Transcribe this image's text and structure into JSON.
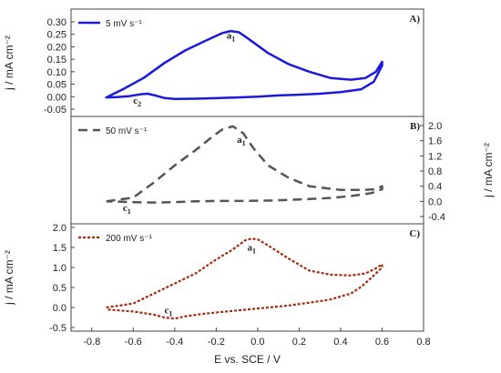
{
  "chart_data": [
    {
      "type": "line",
      "panel": "A)",
      "ylabel": "j / mA cm⁻²",
      "ylim": [
        -0.05,
        0.3
      ],
      "yticks": [
        "0.30",
        "0.25",
        "0.20",
        "0.15",
        "0.10",
        "0.05",
        "0.00",
        "-0.05"
      ],
      "y_axis_side": "left",
      "legend": "5 mV s⁻¹",
      "legend_position": "top-left",
      "series": [
        {
          "name": "5 mV s⁻¹",
          "color": "#1a1adb",
          "style": "solid",
          "x": [
            -0.73,
            -0.65,
            -0.55,
            -0.45,
            -0.35,
            -0.25,
            -0.17,
            -0.13,
            -0.09,
            -0.05,
            0.05,
            0.15,
            0.25,
            0.35,
            0.45,
            0.52,
            0.57,
            0.6,
            0.6,
            0.56,
            0.5,
            0.4,
            0.3,
            0.2,
            0.1,
            0.0,
            -0.1,
            -0.2,
            -0.3,
            -0.4,
            -0.45,
            -0.5,
            -0.53,
            -0.56,
            -0.62,
            -0.68,
            -0.73
          ],
          "y": [
            -0.003,
            0.03,
            0.075,
            0.135,
            0.185,
            0.225,
            0.255,
            0.263,
            0.258,
            0.235,
            0.175,
            0.13,
            0.1,
            0.075,
            0.068,
            0.075,
            0.1,
            0.14,
            0.125,
            0.06,
            0.03,
            0.018,
            0.012,
            0.008,
            0.005,
            0.0,
            -0.003,
            -0.006,
            -0.008,
            -0.009,
            -0.005,
            0.006,
            0.012,
            0.01,
            0.002,
            -0.002,
            -0.003
          ]
        }
      ],
      "annotations": [
        {
          "text": "a",
          "sub": "1",
          "x": -0.15,
          "y": 0.232
        },
        {
          "text": "c",
          "sub": "2",
          "x": -0.6,
          "y": -0.028
        }
      ]
    },
    {
      "type": "line",
      "panel": "B)",
      "ylabel": "j / mA cm⁻²",
      "ylim": [
        -0.4,
        2.0
      ],
      "yticks": [
        "2.0",
        "1.6",
        "1.2",
        "0.8",
        "0.4",
        "0.0",
        "-0.4"
      ],
      "y_axis_side": "right",
      "legend": "50 mV s⁻¹",
      "legend_position": "top-left",
      "series": [
        {
          "name": "50 mV s⁻¹",
          "color": "#555555",
          "style": "dashed",
          "x": [
            -0.73,
            -0.6,
            -0.5,
            -0.4,
            -0.3,
            -0.22,
            -0.17,
            -0.12,
            -0.07,
            -0.02,
            0.05,
            0.15,
            0.25,
            0.4,
            0.5,
            0.57,
            0.6,
            0.6,
            0.55,
            0.45,
            0.35,
            0.2,
            0.05,
            -0.1,
            -0.2,
            -0.3,
            -0.4,
            -0.5,
            -0.6,
            -0.73
          ],
          "y": [
            0.0,
            0.1,
            0.5,
            0.95,
            1.35,
            1.7,
            1.9,
            1.98,
            1.8,
            1.4,
            0.95,
            0.62,
            0.4,
            0.3,
            0.3,
            0.32,
            0.4,
            0.32,
            0.22,
            0.14,
            0.09,
            0.05,
            0.02,
            0.01,
            0.01,
            0.0,
            -0.02,
            -0.03,
            -0.02,
            0.0
          ]
        }
      ],
      "annotations": [
        {
          "text": "a",
          "sub": "1",
          "x": -0.1,
          "y": 1.55
        },
        {
          "text": "c",
          "sub": "1",
          "x": -0.65,
          "y": -0.25
        }
      ]
    },
    {
      "type": "line",
      "panel": "C)",
      "xlabel": "E vs. SCE / V",
      "ylabel": "j / mA cm⁻²",
      "xlim": [
        -0.9,
        0.8
      ],
      "xticks": [
        "-0.8",
        "-0.6",
        "-0.4",
        "-0.2",
        "0.0",
        "0.2",
        "0.4",
        "0.6",
        "0.8"
      ],
      "ylim": [
        -0.5,
        2.0
      ],
      "yticks": [
        "2.0",
        "1.5",
        "1.0",
        "0.5",
        "0.0",
        "-0.5"
      ],
      "y_axis_side": "left",
      "legend": "200 mV s⁻¹",
      "legend_position": "top-left",
      "series": [
        {
          "name": "200 mV s⁻¹",
          "color": "#a52a0f",
          "style": "dotted",
          "x": [
            -0.73,
            -0.6,
            -0.5,
            -0.4,
            -0.3,
            -0.2,
            -0.12,
            -0.06,
            -0.03,
            0.0,
            0.05,
            0.15,
            0.25,
            0.35,
            0.45,
            0.52,
            0.57,
            0.6,
            0.6,
            0.55,
            0.5,
            0.45,
            0.35,
            0.25,
            0.15,
            0.05,
            -0.05,
            -0.15,
            -0.25,
            -0.35,
            -0.4,
            -0.45,
            -0.5,
            -0.6,
            -0.73
          ],
          "y": [
            0.0,
            0.1,
            0.35,
            0.6,
            0.85,
            1.2,
            1.45,
            1.68,
            1.72,
            1.7,
            1.55,
            1.22,
            0.92,
            0.82,
            0.8,
            0.85,
            0.98,
            1.08,
            1.0,
            0.75,
            0.52,
            0.35,
            0.2,
            0.12,
            0.05,
            0.0,
            -0.05,
            -0.1,
            -0.15,
            -0.22,
            -0.28,
            -0.25,
            -0.18,
            -0.1,
            -0.05
          ]
        }
      ],
      "annotations": [
        {
          "text": "a",
          "sub": "1",
          "x": -0.05,
          "y": 1.42
        },
        {
          "text": "c",
          "sub": "1",
          "x": -0.45,
          "y": -0.15
        }
      ]
    }
  ]
}
